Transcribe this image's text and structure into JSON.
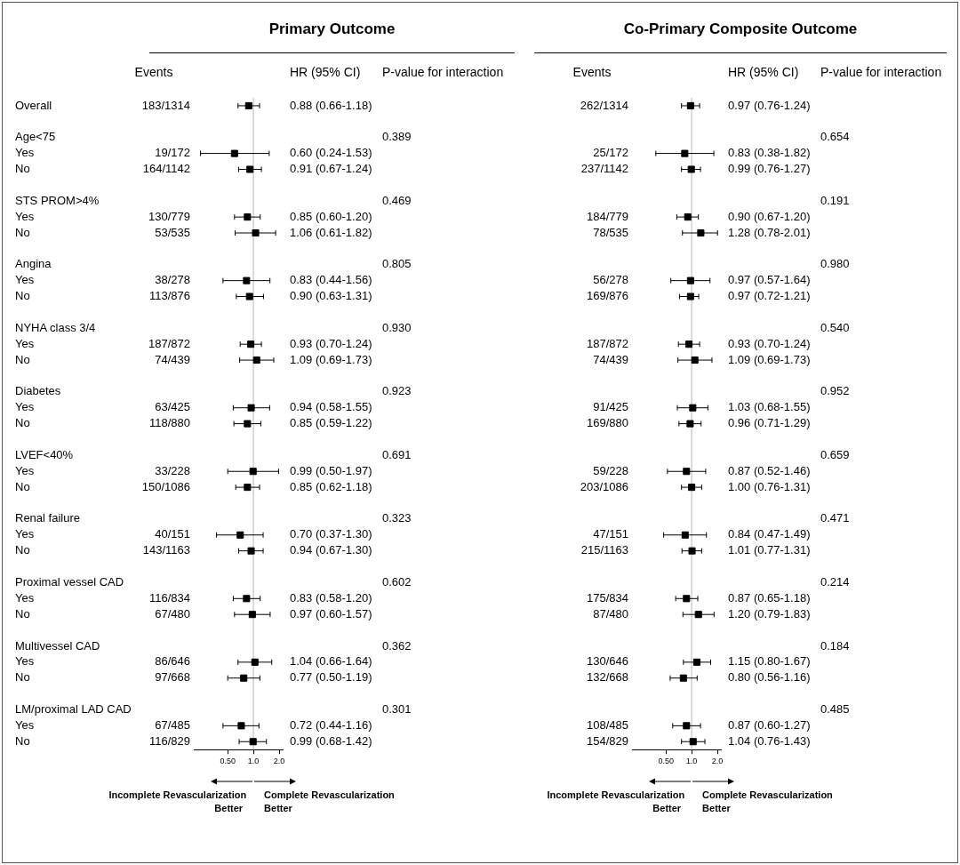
{
  "chart_data": [
    {
      "type": "scatter",
      "title": "Primary Outcome",
      "orientation": "horizontal",
      "log": "x",
      "grid": false,
      "legend": false,
      "marker": "square",
      "color": "#000000",
      "tick_labels": "xy",
      "categories": [
        "Overall",
        null,
        "Age<75",
        "Yes",
        "No",
        null,
        "STS PROM>4%",
        "Yes",
        "No",
        null,
        "Angina",
        "Yes",
        "No",
        null,
        "NYHA class 3/4",
        "Yes",
        "No",
        null,
        "Diabetes",
        "Yes",
        "No",
        null,
        "LVEF<40%",
        "Yes",
        "No",
        null,
        "Renal failure",
        "Yes",
        "No",
        null,
        "Proximal vessel CAD",
        "Yes",
        "No",
        null,
        "Multivessel CAD",
        "Yes",
        "No",
        null,
        "LM/proximal LAD CAD",
        "Yes",
        "No"
      ],
      "values": [
        0.88,
        null,
        null,
        0.6,
        0.91,
        null,
        null,
        0.85,
        1.06,
        null,
        null,
        0.83,
        0.9,
        null,
        null,
        0.93,
        1.09,
        null,
        null,
        0.94,
        0.85,
        null,
        null,
        0.99,
        0.85,
        null,
        null,
        0.7,
        0.94,
        null,
        null,
        0.83,
        0.97,
        null,
        null,
        1.04,
        0.77,
        null,
        null,
        0.72,
        0.99
      ],
      "errors": [
        [
          0.66,
          1.18
        ],
        null,
        null,
        [
          0.24,
          1.53
        ],
        [
          0.67,
          1.24
        ],
        null,
        null,
        [
          0.6,
          1.2
        ],
        [
          0.61,
          1.82
        ],
        null,
        null,
        [
          0.44,
          1.56
        ],
        [
          0.63,
          1.31
        ],
        null,
        null,
        [
          0.7,
          1.24
        ],
        [
          0.69,
          1.73
        ],
        null,
        null,
        [
          0.58,
          1.55
        ],
        [
          0.59,
          1.22
        ],
        null,
        null,
        [
          0.5,
          1.97
        ],
        [
          0.62,
          1.18
        ],
        null,
        null,
        [
          0.37,
          1.3
        ],
        [
          0.67,
          1.3
        ],
        null,
        null,
        [
          0.58,
          1.2
        ],
        [
          0.6,
          1.57
        ],
        null,
        null,
        [
          0.66,
          1.64
        ],
        [
          0.5,
          1.19
        ],
        null,
        null,
        [
          0.44,
          1.16
        ],
        [
          0.68,
          1.42
        ]
      ],
      "value_labels": [
        "0.88 (0.66-1.18)",
        null,
        null,
        "0.60 (0.24-1.53)",
        "0.91 (0.67-1.24)",
        null,
        null,
        "0.85 (0.60-1.20)",
        "1.06 (0.61-1.82)",
        null,
        null,
        "0.83 (0.44-1.56)",
        "0.90 (0.63-1.31)",
        null,
        null,
        "0.93 (0.70-1.24)",
        "1.09 (0.69-1.73)",
        null,
        null,
        "0.94 (0.58-1.55)",
        "0.85 (0.59-1.22)",
        null,
        null,
        "0.99 (0.50-1.97)",
        "0.85 (0.62-1.18)",
        null,
        null,
        "0.70 (0.37-1.30)",
        "0.94 (0.67-1.30)",
        null,
        null,
        "0.83 (0.58-1.20)",
        "0.97 (0.60-1.57)",
        null,
        null,
        "1.04 (0.66-1.64)",
        "0.77 (0.50-1.19)",
        null,
        null,
        "0.72 (0.44-1.16)",
        "0.99 (0.68-1.42)"
      ],
      "xlim": [
        0.2,
        2.2
      ],
      "xticks": [
        {
          "value": 0.5,
          "label": "0.50"
        },
        {
          "value": 1,
          "label": "1.0"
        },
        {
          "value": 2,
          "label": "2.0"
        }
      ],
      "ref_lines": [
        {
          "axis": "x",
          "value": 1,
          "color": "#d0d0d0"
        }
      ],
      "annotations": [
        "Events",
        "HR (95% CI)",
        "P-value for interaction",
        "Incomplete Revascularization Better",
        "Complete Revascularization Better",
        "183/1314",
        "19/172",
        "164/1142",
        "130/779",
        "53/535",
        "38/278",
        "113/876",
        "187/872",
        "74/439",
        "63/425",
        "118/880",
        "33/228",
        "150/1086",
        "40/151",
        "143/1163",
        "116/834",
        "67/480",
        "86/646",
        "97/668",
        "67/485",
        "116/829",
        "0.389",
        "0.469",
        "0.805",
        "0.930",
        "0.923",
        "0.691",
        "0.323",
        "0.602",
        "0.362",
        "0.301"
      ]
    },
    {
      "type": "scatter",
      "title": "Co-Primary Composite Outcome",
      "orientation": "horizontal",
      "log": "x",
      "grid": false,
      "legend": false,
      "marker": "square",
      "color": "#000000",
      "tick_labels": "x",
      "categories": [
        null,
        null,
        null,
        null,
        null,
        null,
        null,
        null,
        null,
        null,
        null,
        null,
        null,
        null,
        null,
        null,
        null,
        null,
        null,
        null,
        null,
        null,
        null,
        null,
        null,
        null,
        null,
        null,
        null,
        null,
        null,
        null,
        null,
        null,
        null,
        null,
        null,
        null,
        null,
        null,
        null
      ],
      "values": [
        0.97,
        null,
        null,
        0.83,
        0.99,
        null,
        null,
        0.9,
        1.28,
        null,
        null,
        0.97,
        0.97,
        null,
        null,
        0.93,
        1.09,
        null,
        null,
        1.03,
        0.96,
        null,
        null,
        0.87,
        1.0,
        null,
        null,
        0.84,
        1.01,
        null,
        null,
        0.87,
        1.2,
        null,
        null,
        1.15,
        0.8,
        null,
        null,
        0.87,
        1.04
      ],
      "errors": [
        [
          0.76,
          1.24
        ],
        null,
        null,
        [
          0.38,
          1.82
        ],
        [
          0.76,
          1.27
        ],
        null,
        null,
        [
          0.67,
          1.2
        ],
        [
          0.78,
          2.01
        ],
        null,
        null,
        [
          0.57,
          1.64
        ],
        [
          0.72,
          1.21
        ],
        null,
        null,
        [
          0.7,
          1.24
        ],
        [
          0.69,
          1.73
        ],
        null,
        null,
        [
          0.68,
          1.55
        ],
        [
          0.71,
          1.29
        ],
        null,
        null,
        [
          0.52,
          1.46
        ],
        [
          0.76,
          1.31
        ],
        null,
        null,
        [
          0.47,
          1.49
        ],
        [
          0.77,
          1.31
        ],
        null,
        null,
        [
          0.65,
          1.18
        ],
        [
          0.79,
          1.83
        ],
        null,
        null,
        [
          0.8,
          1.67
        ],
        [
          0.56,
          1.16
        ],
        null,
        null,
        [
          0.6,
          1.27
        ],
        [
          0.76,
          1.43
        ]
      ],
      "value_labels": [
        "0.97 (0.76-1.24)",
        null,
        null,
        "0.83 (0.38-1.82)",
        "0.99 (0.76-1.27)",
        null,
        null,
        "0.90 (0.67-1.20)",
        "1.28 (0.78-2.01)",
        null,
        null,
        "0.97 (0.57-1.64)",
        "0.97 (0.72-1.21)",
        null,
        null,
        "0.93 (0.70-1.24)",
        "1.09 (0.69-1.73)",
        null,
        null,
        "1.03 (0.68-1.55)",
        "0.96 (0.71-1.29)",
        null,
        null,
        "0.87 (0.52-1.46)",
        "1.00 (0.76-1.31)",
        null,
        null,
        "0.84 (0.47-1.49)",
        "1.01 (0.77-1.31)",
        null,
        null,
        "0.87 (0.65-1.18)",
        "1.20 (0.79-1.83)",
        null,
        null,
        "1.15 (0.80-1.67)",
        "0.80 (0.56-1.16)",
        null,
        null,
        "0.87 (0.60-1.27)",
        "1.04 (0.76-1.43)"
      ],
      "xlim": [
        0.2,
        2.2
      ],
      "xticks": [
        {
          "value": 0.5,
          "label": "0.50"
        },
        {
          "value": 1,
          "label": "1.0"
        },
        {
          "value": 2,
          "label": "2.0"
        }
      ],
      "ref_lines": [
        {
          "axis": "x",
          "value": 1,
          "color": "#d0d0d0"
        }
      ],
      "annotations": [
        "Events",
        "HR (95% CI)",
        "P-value for interaction",
        "Incomplete Revascularization Better",
        "Complete Revascularization Better",
        "262/1314",
        "25/172",
        "237/1142",
        "184/779",
        "78/535",
        "56/278",
        "169/876",
        "187/872",
        "74/439",
        "91/425",
        "169/880",
        "59/228",
        "203/1086",
        "47/151",
        "215/1163",
        "175/834",
        "87/480",
        "130/646",
        "132/668",
        "108/485",
        "154/829",
        "0.654",
        "0.191",
        "0.980",
        "0.540",
        "0.952",
        "0.659",
        "0.471",
        "0.214",
        "0.184",
        "0.485"
      ]
    }
  ]
}
